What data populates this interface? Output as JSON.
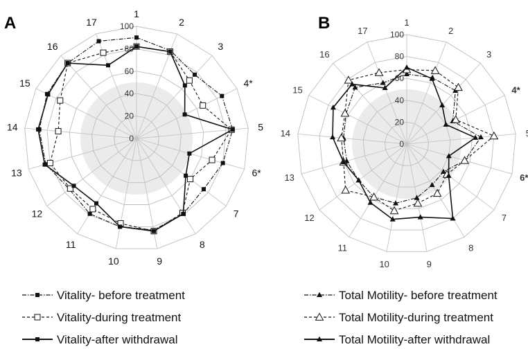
{
  "chart_data": [
    {
      "type": "radar",
      "panel_label": "A",
      "categories": [
        "1",
        "2",
        "3",
        "4*",
        "5",
        "6*",
        "7",
        "8",
        "9",
        "10",
        "11",
        "12",
        "13",
        "14",
        "15",
        "16",
        "17"
      ],
      "ticks": [
        "0",
        "20",
        "40",
        "60",
        "80",
        "100"
      ],
      "rlim": [
        0,
        100
      ],
      "grid": true,
      "shaded_band": [
        0,
        50
      ],
      "series": [
        {
          "name": "Vitality- before treatment",
          "line": "dash-dot",
          "marker": "filled-square",
          "values": [
            90,
            84,
            77,
            85,
            86,
            80,
            75,
            79,
            83,
            80,
            79,
            75,
            84,
            87,
            89,
            91,
            93
          ]
        },
        {
          "name": "Vitality-during treatment",
          "line": "dash",
          "marker": "open-square",
          "values": [
            82,
            83,
            70,
            66,
            85,
            70,
            60,
            78,
            84,
            77,
            74,
            74,
            80,
            70,
            76,
            91,
            82
          ]
        },
        {
          "name": "Vitality-after withdrawal",
          "line": "solid",
          "marker": "filled-square",
          "values": [
            82,
            83,
            64,
            48,
            86,
            49,
            55,
            79,
            84,
            80,
            68,
            70,
            85,
            88,
            88,
            91,
            70
          ]
        }
      ]
    },
    {
      "type": "radar",
      "panel_label": "B",
      "categories": [
        "1",
        "2",
        "3",
        "4*",
        "5",
        "6*",
        "7",
        "8",
        "9",
        "10",
        "11",
        "12",
        "13",
        "14",
        "15",
        "16",
        "17"
      ],
      "ticks": [
        "0",
        "20",
        "40",
        "60",
        "80",
        "100"
      ],
      "rlim": [
        0,
        100
      ],
      "grid": true,
      "shaded_band": [
        0,
        50
      ],
      "series": [
        {
          "name": "Total Motility- before treatment",
          "line": "dash-dot",
          "marker": "filled-triangle",
          "values": [
            64,
            65,
            66,
            47,
            68,
            55,
            42,
            44,
            50,
            55,
            57,
            55,
            57,
            58,
            62,
            70,
            60
          ]
        },
        {
          "name": "Total Motility-during treatment",
          "line": "dash",
          "marker": "open-triangle",
          "values": [
            68,
            72,
            70,
            50,
            80,
            55,
            46,
            53,
            55,
            62,
            57,
            70,
            60,
            60,
            63,
            79,
            70
          ]
        },
        {
          "name": "Total Motility-after withdrawal",
          "line": "solid",
          "marker": "filled-triangle",
          "values": [
            70,
            64,
            48,
            40,
            63,
            40,
            48,
            80,
            68,
            70,
            63,
            55,
            60,
            68,
            75,
            74,
            55
          ]
        }
      ]
    }
  ]
}
